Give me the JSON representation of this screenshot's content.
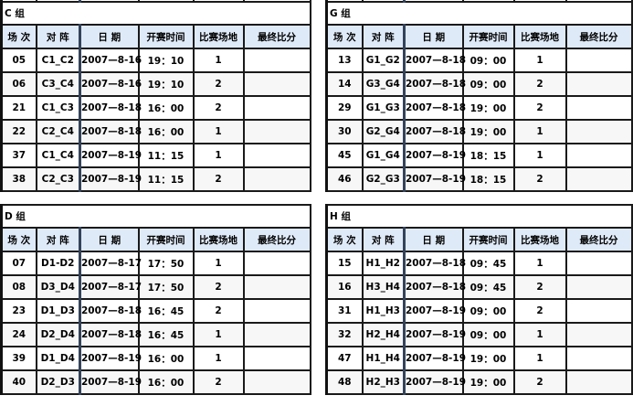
{
  "headers": [
    "场 次",
    "对 阵",
    "日 期",
    "开赛时间",
    "比赛场地",
    "最终比分"
  ],
  "groups": [
    {
      "title": "C 组",
      "rows": [
        [
          "05",
          "C1_C2",
          "2007—8-16",
          "19：10",
          "1",
          ""
        ],
        [
          "06",
          "C3_C4",
          "2007—8-16",
          "19：10",
          "2",
          ""
        ],
        [
          "21",
          "C1_C3",
          "2007—8-18",
          "16：00",
          "2",
          ""
        ],
        [
          "22",
          "C2_C4",
          "2007—8-18",
          "16：00",
          "1",
          ""
        ],
        [
          "37",
          "C1_C4",
          "2007—8-19",
          "11：15",
          "1",
          ""
        ],
        [
          "38",
          "C2_C3",
          "2007—8-19",
          "11：15",
          "2",
          ""
        ]
      ]
    },
    {
      "title": "G 组",
      "rows": [
        [
          "13",
          "G1_G2",
          "2007—8-18",
          "09：00",
          "1",
          ""
        ],
        [
          "14",
          "G3_G4",
          "2007—8-18",
          "09：00",
          "2",
          ""
        ],
        [
          "29",
          "G1_G3",
          "2007—8-18",
          "19：00",
          "2",
          ""
        ],
        [
          "30",
          "G2_G4",
          "2007—8-18",
          "19：00",
          "1",
          ""
        ],
        [
          "45",
          "G1_G4",
          "2007—8-19",
          "18：15",
          "1",
          ""
        ],
        [
          "46",
          "G2_G3",
          "2007—8-19",
          "18：15",
          "2",
          ""
        ]
      ]
    },
    {
      "title": "D 组",
      "rows": [
        [
          "07",
          "D1-D2",
          "2007—8-17",
          "17：50",
          "1",
          ""
        ],
        [
          "08",
          "D3_D4",
          "2007—8-17",
          "17：50",
          "2",
          ""
        ],
        [
          "23",
          "D1_D3",
          "2007—8-18",
          "16：45",
          "2",
          ""
        ],
        [
          "24",
          "D2_D4",
          "2007—8-18",
          "16：45",
          "1",
          ""
        ],
        [
          "39",
          "D1_D4",
          "2007—8-19",
          "16：00",
          "1",
          ""
        ],
        [
          "40",
          "D2_D3",
          "2007—8-19",
          "16：00",
          "2",
          ""
        ]
      ]
    },
    {
      "title": "H 组",
      "rows": [
        [
          "15",
          "H1_H2",
          "2007—8-18",
          "09：45",
          "1",
          ""
        ],
        [
          "16",
          "H3_H4",
          "2007—8-18",
          "09：45",
          "2",
          ""
        ],
        [
          "31",
          "H1_H3",
          "2007—8-19",
          "09：00",
          "2",
          ""
        ],
        [
          "32",
          "H2_H4",
          "2007—8-19",
          "09：00",
          "1",
          ""
        ],
        [
          "47",
          "H1_H4",
          "2007—8-19",
          "19：00",
          "1",
          ""
        ],
        [
          "48",
          "H2_H3",
          "2007—8-19",
          "19：00",
          "2",
          ""
        ]
      ]
    }
  ]
}
